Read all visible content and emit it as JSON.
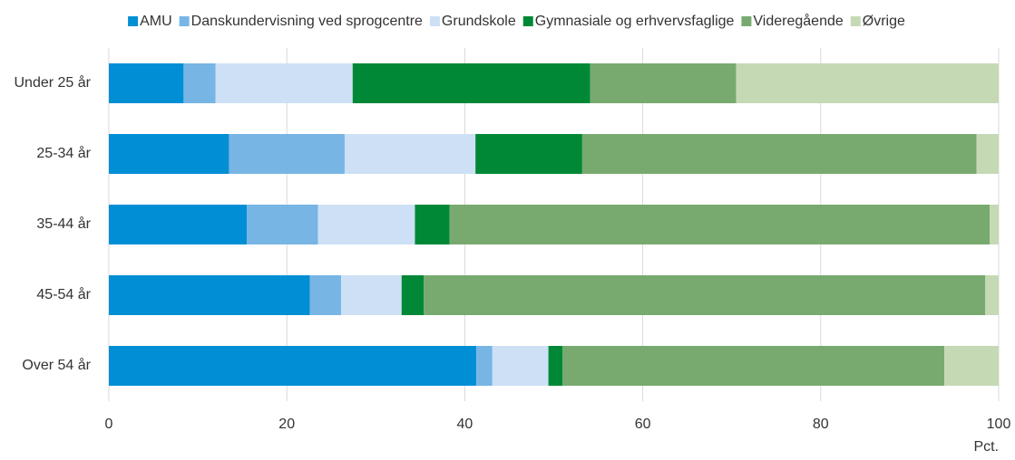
{
  "chart_data": {
    "type": "stacked-barh",
    "categories": [
      "Under 25 år",
      "25-34 år",
      "35-44 år",
      "45-54 år",
      "Over 54 år"
    ],
    "series": [
      {
        "name": "AMU",
        "color": "#008fd5",
        "values": [
          8.4,
          13.5,
          15.5,
          22.6,
          41.3
        ]
      },
      {
        "name": "Danskundervisning ved sprogcentre",
        "color": "#77b5e5",
        "values": [
          3.6,
          13.0,
          8.0,
          3.5,
          1.8
        ]
      },
      {
        "name": "Grundskole",
        "color": "#cde0f5",
        "values": [
          15.4,
          14.7,
          10.9,
          6.8,
          6.3
        ]
      },
      {
        "name": "Gymnasiale og erhvervsfaglige",
        "color": "#008837",
        "values": [
          26.7,
          12.0,
          3.9,
          2.5,
          1.6
        ]
      },
      {
        "name": "Videregående",
        "color": "#78aa6f",
        "values": [
          16.4,
          44.3,
          60.7,
          63.1,
          42.9
        ]
      },
      {
        "name": "Øvrige",
        "color": "#c6d9b5",
        "values": [
          29.5,
          2.5,
          1.0,
          1.5,
          6.1
        ]
      }
    ],
    "x_label": "Pct.",
    "xlim": [
      0,
      100
    ],
    "xticks": [
      0,
      20,
      40,
      60,
      80,
      100
    ],
    "grid": true,
    "legend": "top"
  }
}
